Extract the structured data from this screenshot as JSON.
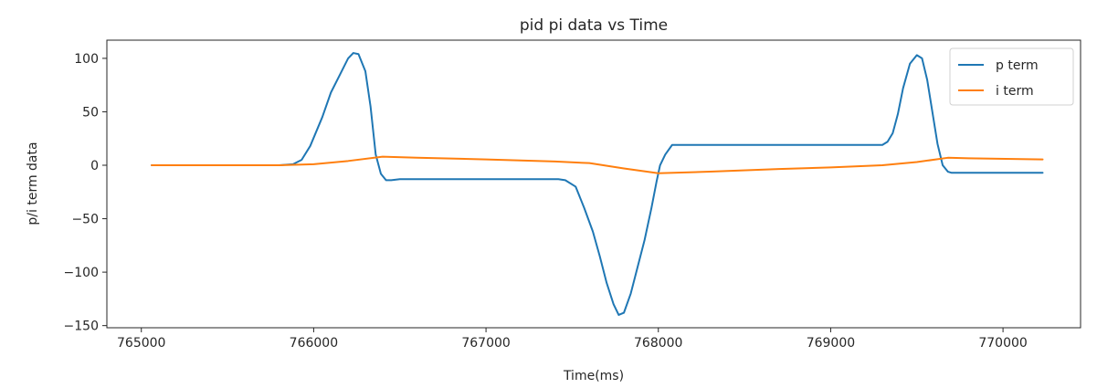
{
  "chart_data": {
    "type": "line",
    "title": "pid pi data vs Time",
    "xlabel": "Time(ms)",
    "ylabel": "p/i term data",
    "xlim": [
      764800,
      770450
    ],
    "ylim": [
      -152,
      117
    ],
    "xticks": [
      765000,
      766000,
      767000,
      768000,
      769000,
      770000
    ],
    "xtick_labels": [
      "765000",
      "766000",
      "767000",
      "768000",
      "769000",
      "770000"
    ],
    "yticks": [
      100,
      50,
      0,
      -50,
      -100,
      -150
    ],
    "ytick_labels": [
      "100",
      "50",
      "0",
      "−50",
      "−100",
      "−150"
    ],
    "grid": false,
    "legend_position": "top-right",
    "series": [
      {
        "name": "p term",
        "color": "#1f77b4",
        "x": [
          765060,
          765400,
          765600,
          765800,
          765880,
          765930,
          765980,
          766050,
          766100,
          766150,
          766200,
          766230,
          766260,
          766300,
          766330,
          766360,
          766390,
          766420,
          766450,
          766500,
          766800,
          767000,
          767200,
          767420,
          767460,
          767520,
          767570,
          767620,
          767660,
          767700,
          767740,
          767770,
          767800,
          767840,
          767880,
          767920,
          767960,
          767990,
          768010,
          768040,
          768080,
          768150,
          768500,
          769000,
          769300,
          769330,
          769360,
          769390,
          769420,
          769460,
          769500,
          769530,
          769560,
          769590,
          769620,
          769650,
          769680,
          769700,
          769750,
          770230
        ],
        "y": [
          0,
          0,
          0,
          0,
          1,
          5,
          18,
          45,
          68,
          84,
          100,
          105,
          104,
          88,
          55,
          10,
          -8,
          -14,
          -14,
          -13,
          -13,
          -13,
          -13,
          -13,
          -14,
          -20,
          -40,
          -62,
          -85,
          -110,
          -130,
          -140,
          -138,
          -120,
          -95,
          -70,
          -40,
          -15,
          0,
          10,
          19,
          19,
          19,
          19,
          19,
          22,
          30,
          48,
          72,
          95,
          103,
          100,
          80,
          50,
          20,
          0,
          -6,
          -7,
          -7,
          -7
        ]
      },
      {
        "name": "i term",
        "color": "#ff7f0e",
        "x": [
          765060,
          765500,
          765800,
          766000,
          766200,
          766400,
          766600,
          767000,
          767400,
          767600,
          767800,
          768000,
          768300,
          768700,
          769000,
          769300,
          769500,
          769680,
          769800,
          770230
        ],
        "y": [
          0,
          0,
          0,
          1,
          4,
          8,
          7,
          5.5,
          3.5,
          2,
          -3,
          -7.5,
          -6,
          -3.5,
          -2,
          0,
          3,
          7,
          6.5,
          5.5
        ]
      }
    ]
  }
}
